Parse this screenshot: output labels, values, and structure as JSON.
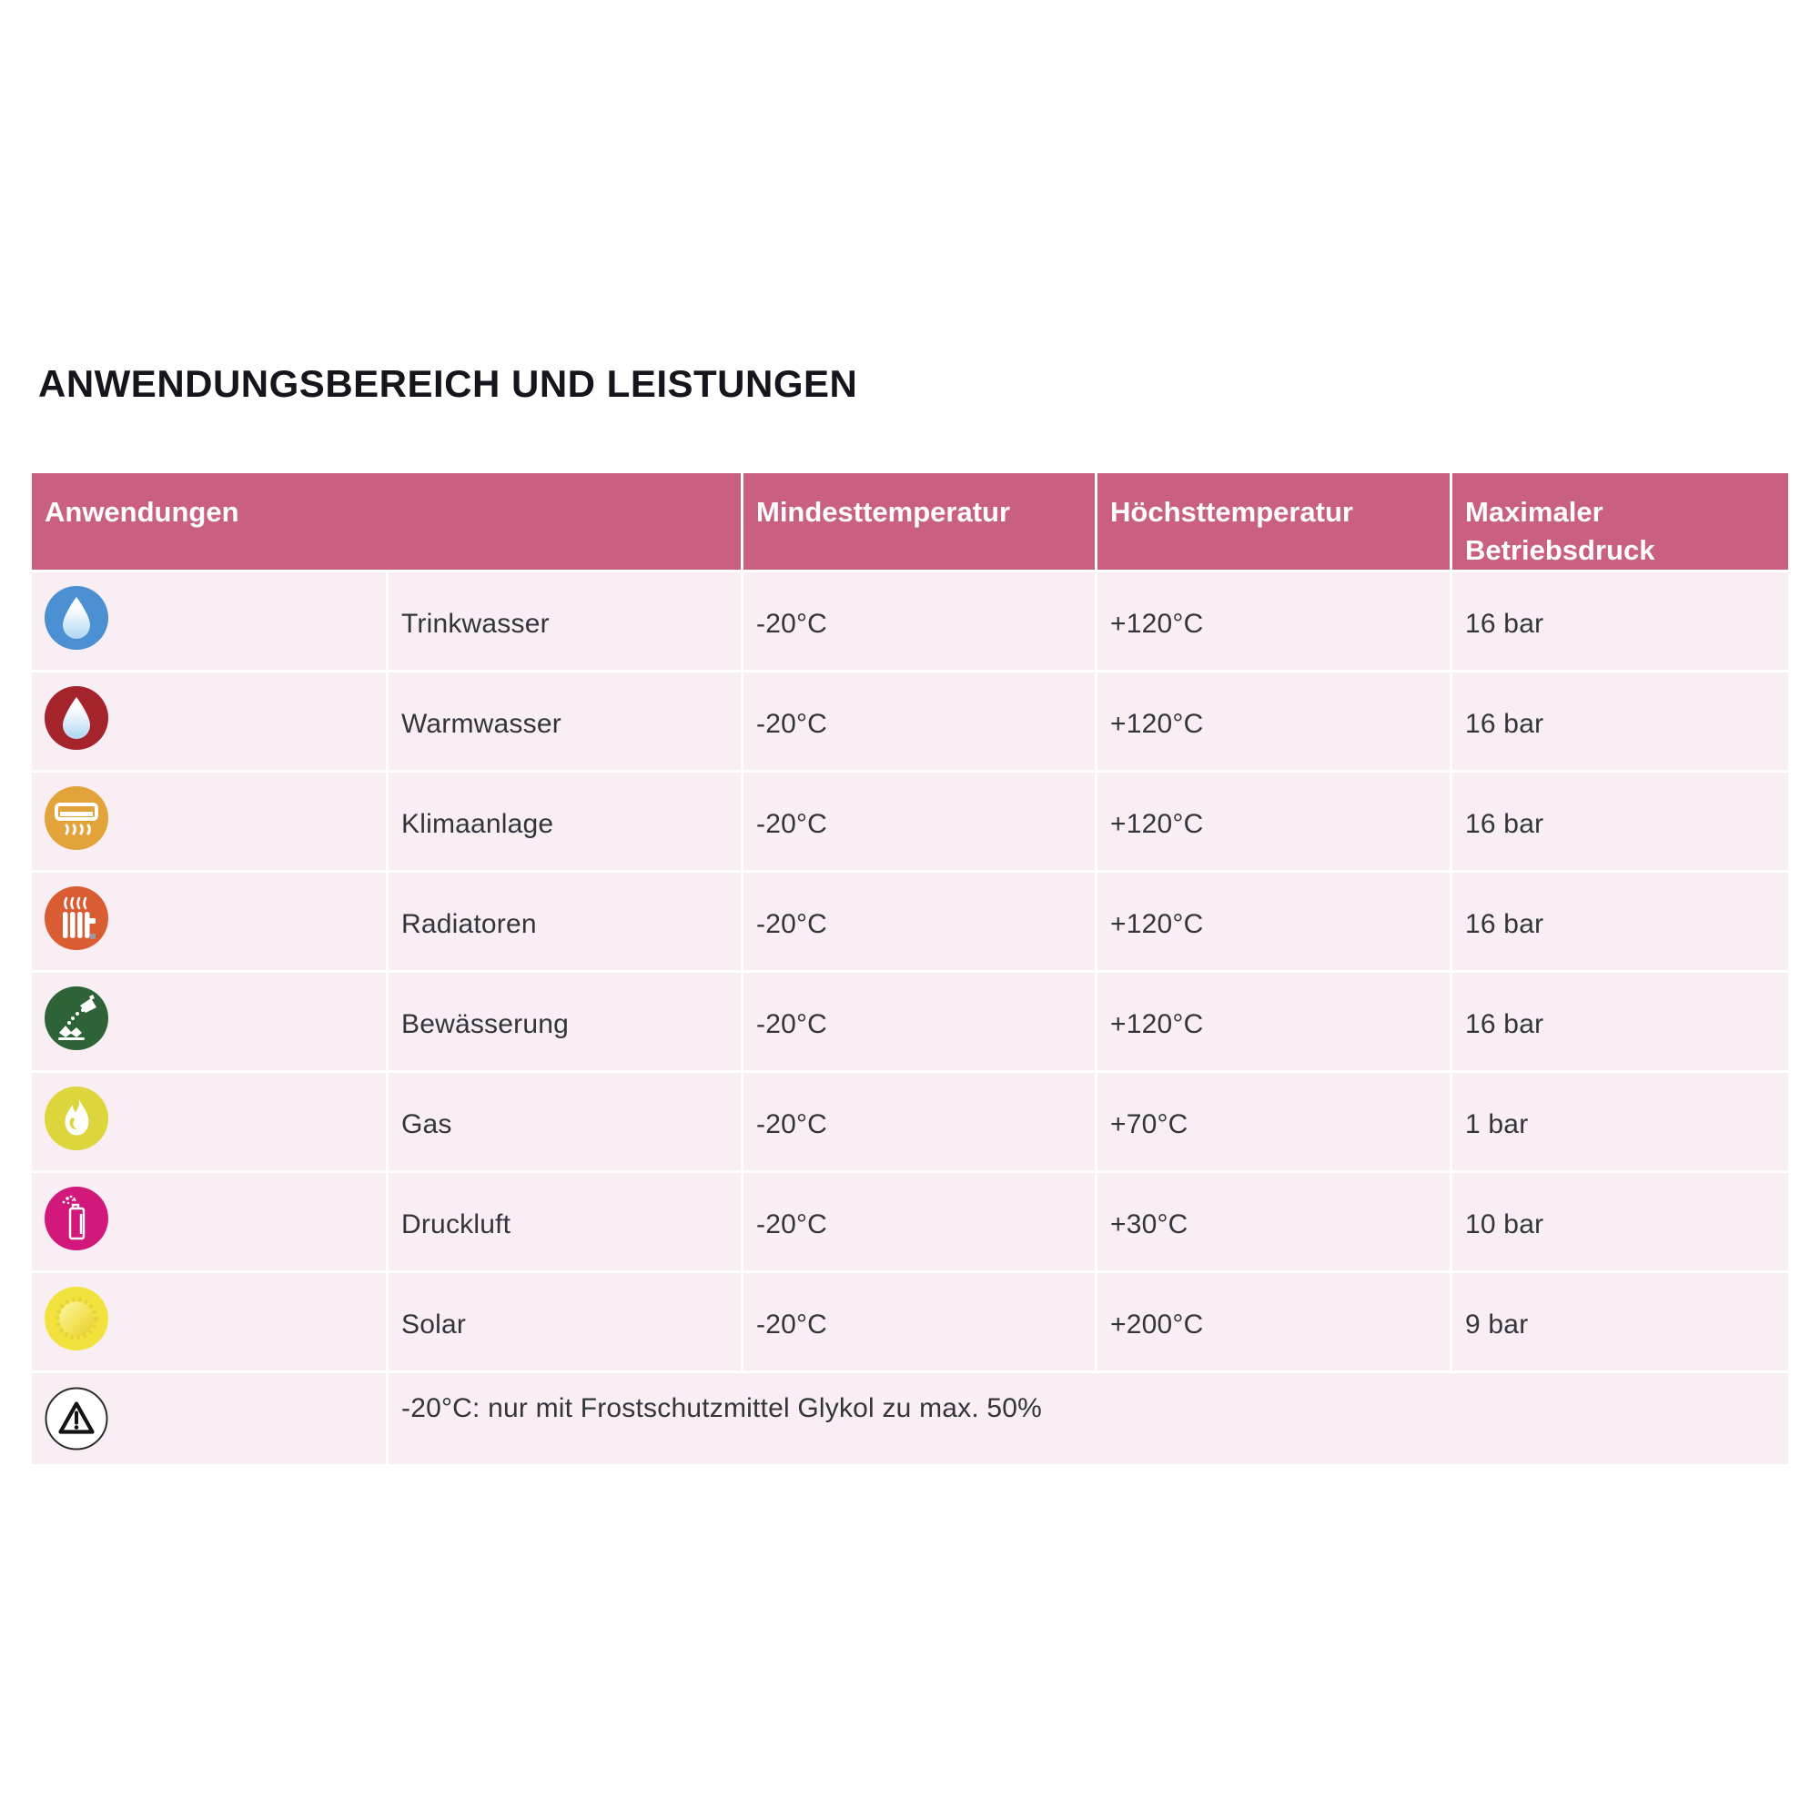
{
  "title": "ANWENDUNGSBEREICH UND LEISTUNGEN",
  "colors": {
    "header_bg": "#ca6080",
    "header_text": "#ffffff",
    "row_bg": "#f9eef4",
    "body_text": "#33343e",
    "title_text": "#15151d"
  },
  "table": {
    "headers": [
      "Anwendungen",
      "Mindesttemperatur",
      "Höchsttemperatur",
      "Maximaler Betriebsdruck"
    ],
    "rows": [
      {
        "icon": "water-drop-icon",
        "icon_bg": "#4b90d3",
        "label": "Trinkwasser",
        "min_temp": "-20°C",
        "max_temp": "+120°C",
        "max_pressure": "16 bar"
      },
      {
        "icon": "water-drop-icon",
        "icon_bg": "#a5242c",
        "label": "Warmwasser",
        "min_temp": "-20°C",
        "max_temp": "+120°C",
        "max_pressure": "16 bar"
      },
      {
        "icon": "air-conditioner-icon",
        "icon_bg": "#e3a33b",
        "label": "Klimaanlage",
        "min_temp": "-20°C",
        "max_temp": "+120°C",
        "max_pressure": "16 bar"
      },
      {
        "icon": "radiator-icon",
        "icon_bg": "#d95c33",
        "label": "Radiatoren",
        "min_temp": "-20°C",
        "max_temp": "+120°C",
        "max_pressure": "16 bar"
      },
      {
        "icon": "watering-can-icon",
        "icon_bg": "#2d6336",
        "label": "Bewässerung",
        "min_temp": "-20°C",
        "max_temp": "+120°C",
        "max_pressure": "16 bar"
      },
      {
        "icon": "flame-icon",
        "icon_bg": "#dcd53b",
        "label": "Gas",
        "min_temp": "-20°C",
        "max_temp": "+70°C",
        "max_pressure": "1 bar"
      },
      {
        "icon": "spray-can-icon",
        "icon_bg": "#d3187c",
        "label": "Druckluft",
        "min_temp": "-20°C",
        "max_temp": "+30°C",
        "max_pressure": "10 bar"
      },
      {
        "icon": "sun-icon",
        "icon_bg": "#f2e23e",
        "label": "Solar",
        "min_temp": "-20°C",
        "max_temp": "+200°C",
        "max_pressure": "9 bar"
      }
    ],
    "footnote": {
      "icon": "warning-icon",
      "text": "-20°C: nur mit Frostschutzmittel Glykol zu max. 50%"
    }
  }
}
